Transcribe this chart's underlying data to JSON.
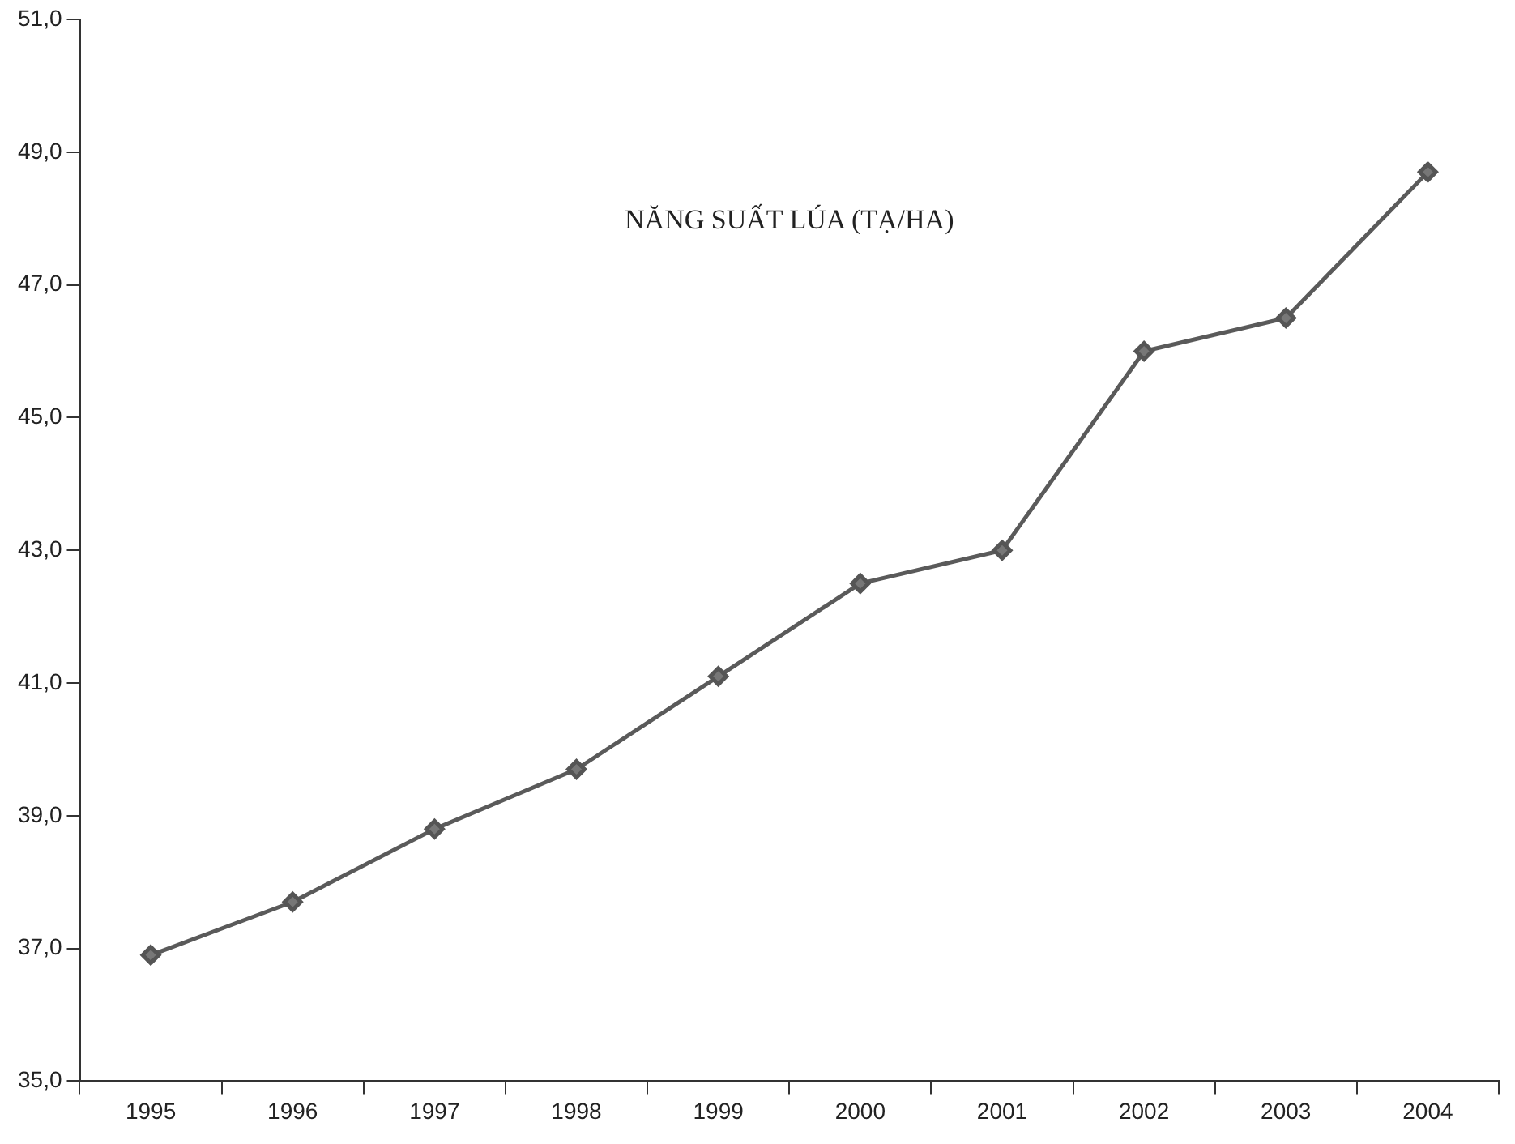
{
  "chart_data": {
    "type": "line",
    "title": "NĂNG SUẤT LÚA (TẠ/HA)",
    "categories": [
      "1995",
      "1996",
      "1997",
      "1998",
      "1999",
      "2000",
      "2001",
      "2002",
      "2003",
      "2004"
    ],
    "series": [
      {
        "color": "#5a5a5a",
        "values": [
          36.9,
          37.7,
          38.8,
          39.7,
          41.1,
          42.5,
          43.0,
          46.0,
          46.5,
          48.7
        ]
      }
    ],
    "ylim": [
      35,
      51
    ],
    "yticks": [
      {
        "value": 35,
        "label": "35,0"
      },
      {
        "value": 37,
        "label": "37,0"
      },
      {
        "value": 39,
        "label": "39,0"
      },
      {
        "value": 41,
        "label": "41,0"
      },
      {
        "value": 43,
        "label": "43,0"
      },
      {
        "value": 45,
        "label": "45,0"
      },
      {
        "value": 47,
        "label": "47,0"
      },
      {
        "value": 49,
        "label": "49,0"
      },
      {
        "value": 51,
        "label": "51,0"
      }
    ],
    "grid": false,
    "legend": false,
    "marker": "diamond",
    "line_style": "solid"
  }
}
